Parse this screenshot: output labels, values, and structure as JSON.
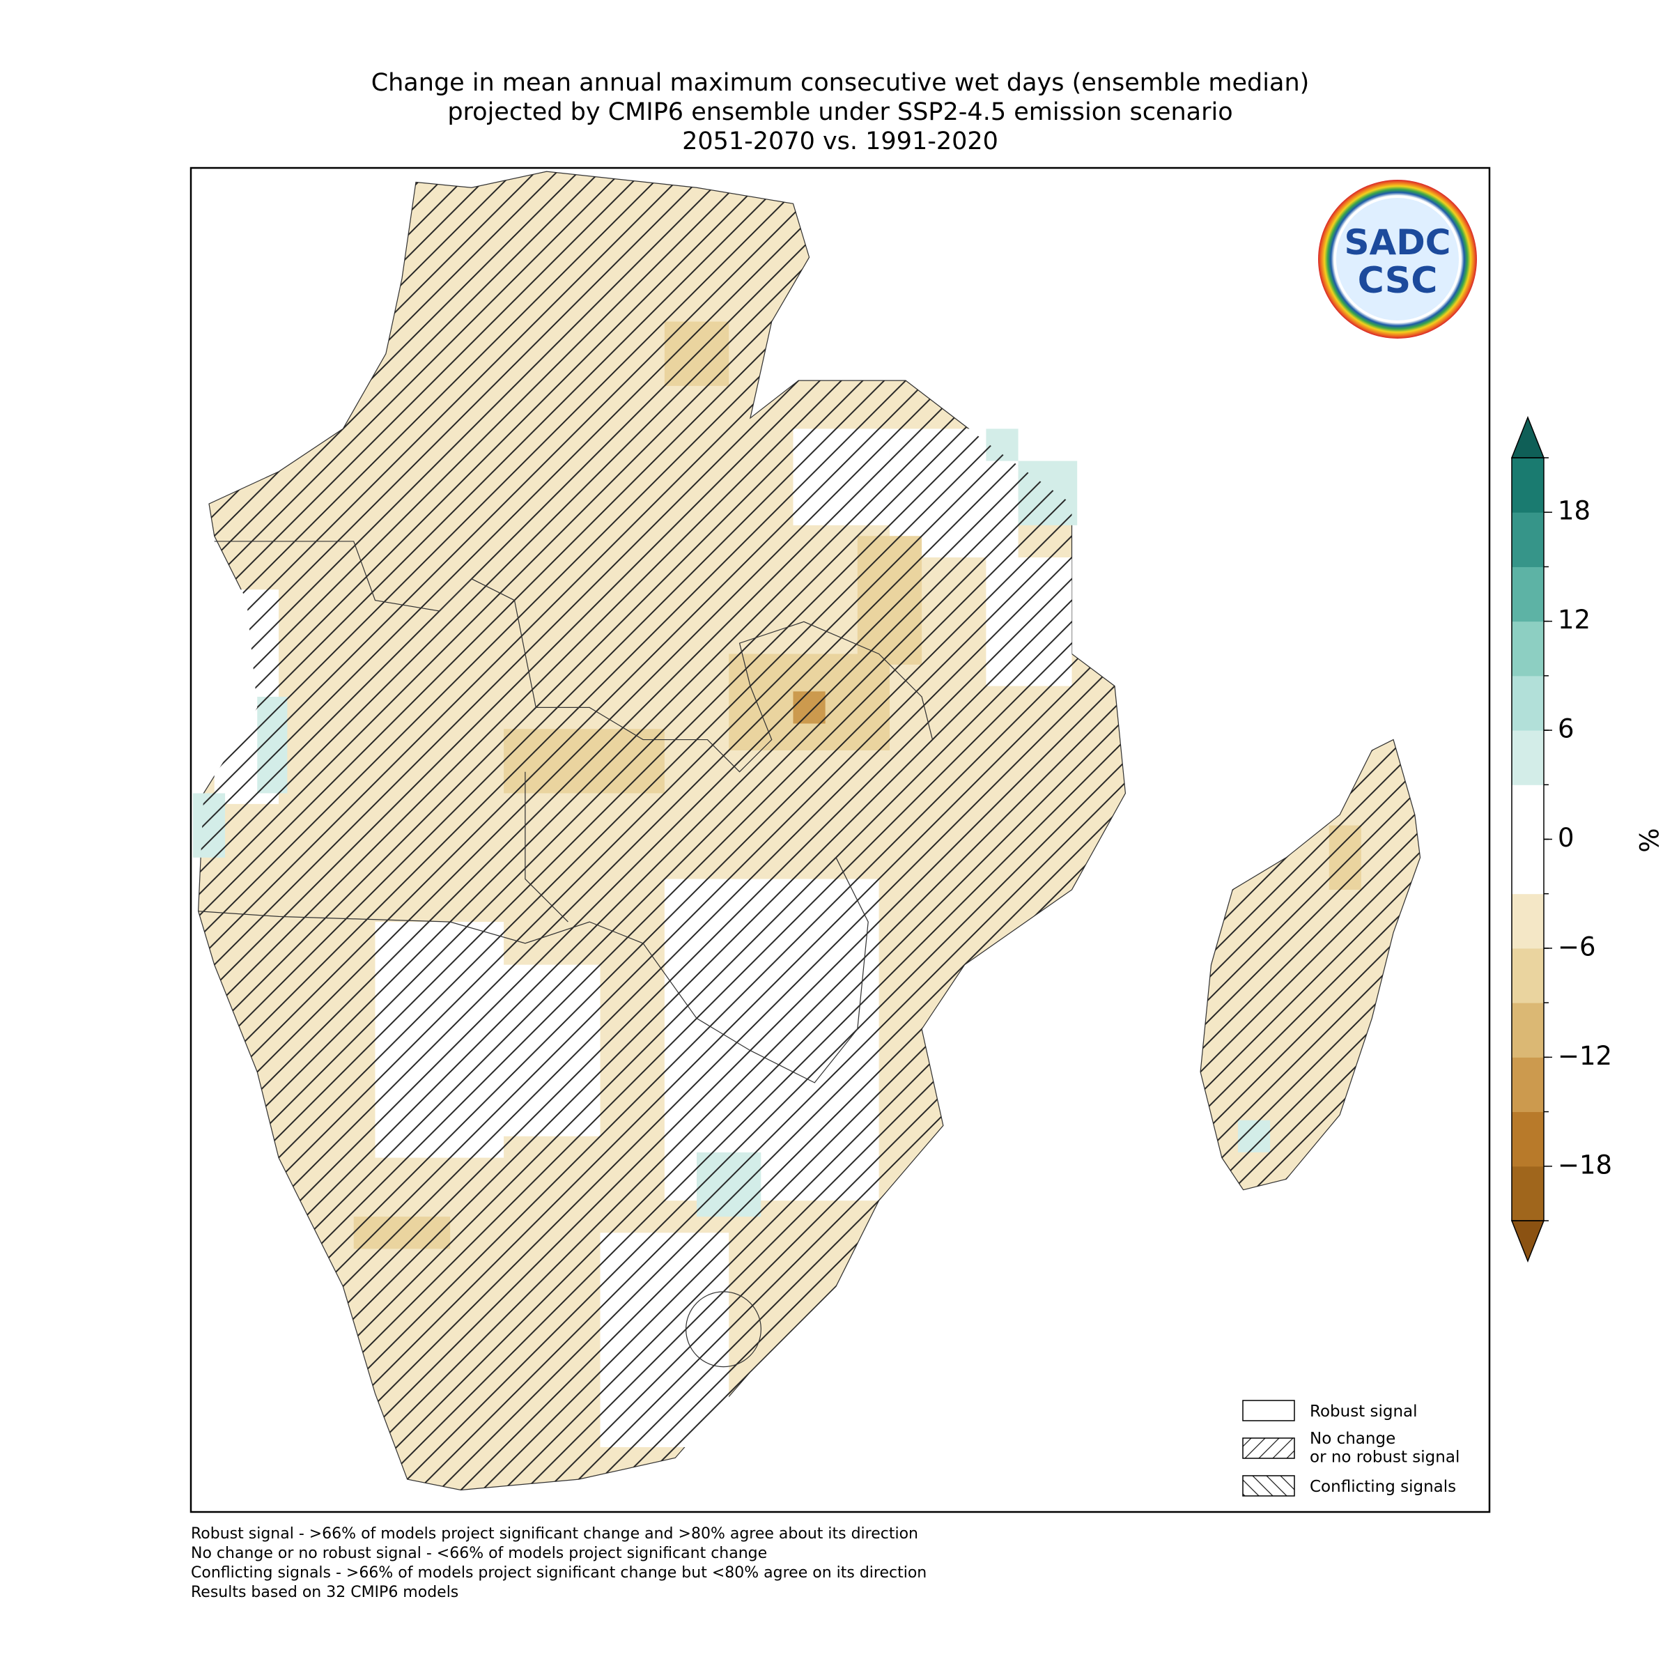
{
  "title": [
    "Change in mean annual maximum consecutive wet days (ensemble median)",
    "projected by CMIP6 ensemble under SSP2-4.5 emission scenario",
    "2051-2070 vs. 1991-2020"
  ],
  "logo": [
    "SADC",
    "CSC"
  ],
  "colorbar": {
    "label": "%",
    "levels": [
      -21,
      -18,
      -15,
      -12,
      -9,
      -6,
      -3,
      0,
      3,
      6,
      9,
      12,
      15,
      18,
      21
    ],
    "colors": [
      "#a0661c",
      "#b87a2a",
      "#cc9a4e",
      "#dbb874",
      "#ead49f",
      "#f4e7c6",
      "#ffffff",
      "#ffffff",
      "#d3ede8",
      "#b2e0d9",
      "#8dcfc2",
      "#5db3a5",
      "#369589",
      "#1a7b70"
    ],
    "under": "#8b5212",
    "over": "#0f5f57",
    "ticks": [
      {
        "value": -18,
        "label": "−18"
      },
      {
        "value": -12,
        "label": "−12"
      },
      {
        "value": -6,
        "label": "−6"
      },
      0,
      6,
      12,
      18
    ]
  },
  "legend": [
    "Robust signal",
    "No change\nor no robust signal",
    "Conflicting signals"
  ],
  "notes": [
    "Robust signal - >66% of models project significant change and >80% agree about its direction",
    "No change or no robust signal - <66% of models project significant change",
    "Conflicting signals - >66% of models project significant change but <80% agree on its direction",
    "Results based on 32 CMIP6 models"
  ]
}
